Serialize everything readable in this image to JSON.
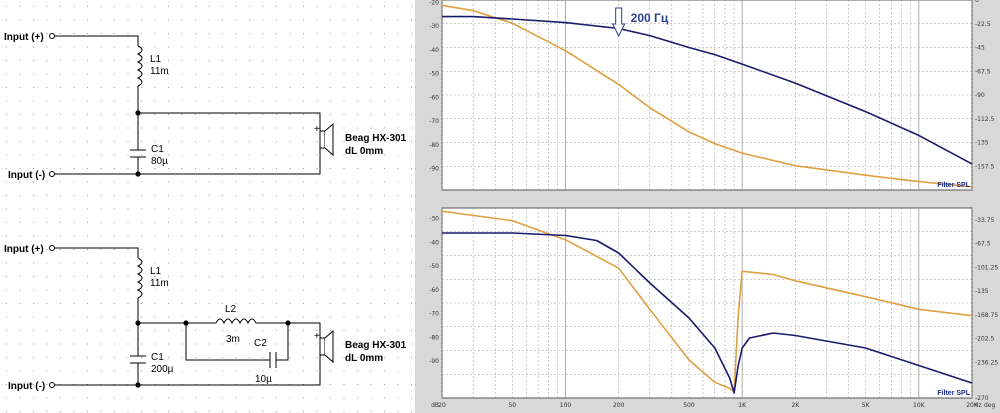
{
  "circuit_top": {
    "input_plus": "Input (+)",
    "input_minus": "Input (-)",
    "l1_name": "L1",
    "l1_value": "11m",
    "c1_name": "C1",
    "c1_value": "80µ",
    "speaker_name": "Beag  HX-301",
    "speaker_dl": "dL 0mm",
    "speaker_plus": "+"
  },
  "circuit_bottom": {
    "input_plus": "Input (+)",
    "input_minus": "Input (-)",
    "l1_name": "L1",
    "l1_value": "11m",
    "l2_name": "L2",
    "l2_value": "3m",
    "c1_name": "C1",
    "c1_value": "200µ",
    "c2_name": "C2",
    "c2_value": "10µ",
    "speaker_name": "Beag  HX-301",
    "speaker_dl": "dL 0mm",
    "speaker_plus": "+"
  },
  "colors": {
    "spl": "#1a1a6e",
    "phase": "#e0a040",
    "grid": "#999999",
    "plot_bg": "#ffffff",
    "frame": "#d8d8d8"
  },
  "chart_data": [
    {
      "type": "line",
      "legend": "Filter SPL",
      "annotation": "200 Гц",
      "left_axis_ticks": [
        "-20",
        "-30",
        "-40",
        "-50",
        "-60",
        "-70",
        "-80",
        "-90"
      ],
      "right_axis_ticks": [
        "0",
        "-22.5",
        "-45",
        "-67.5",
        "-90",
        "-112.5",
        "-135",
        "-157.5"
      ],
      "grid": true,
      "x_scale": "log",
      "series": [
        {
          "x": [
            20,
            30,
            50,
            100,
            200,
            300,
            500,
            700,
            1000,
            2000,
            5000,
            10000,
            20000
          ],
          "values": [
            -22,
            -22,
            -23,
            -24.5,
            -27,
            -30,
            -35,
            -38,
            -42,
            -50,
            -62,
            -72,
            -84
          ]
        },
        {
          "x": [
            20,
            30,
            50,
            100,
            200,
            300,
            500,
            700,
            1000,
            2000,
            5000,
            10000,
            20000
          ],
          "values": [
            -5,
            -10,
            -22,
            -48,
            -80,
            -102,
            -125,
            -136,
            -145,
            -157,
            -166,
            -172,
            -177
          ]
        }
      ]
    },
    {
      "type": "line",
      "legend": "Filter SPL",
      "left_axis_ticks": [
        "-30",
        "-40",
        "-50",
        "-60",
        "-70",
        "-80",
        "-90"
      ],
      "right_axis_ticks": [
        "-33.75",
        "-67.5",
        "-101.25",
        "-135",
        "-168.75",
        "-202.5",
        "-236.25"
      ],
      "x_ticks": [
        "20",
        "50",
        "100",
        "200",
        "500",
        "1K",
        "2K",
        "5K",
        "10K",
        "20K"
      ],
      "x_unit": "Hz",
      "left_unit": "dB",
      "right_unit": "deg",
      "right_bottom": "-270",
      "grid": true,
      "x_scale": "log",
      "series": [
        {
          "x": [
            20,
            30,
            50,
            100,
            150,
            200,
            300,
            500,
            700,
            850,
            900,
            950,
            1000,
            1100,
            1500,
            2000,
            5000,
            10000,
            20000
          ],
          "values": [
            -32,
            -32,
            -32,
            -33,
            -35,
            -40,
            -52,
            -66,
            -78,
            -90,
            -96,
            -85,
            -78,
            -74,
            -72,
            -73,
            -78,
            -85,
            -92
          ]
        },
        {
          "x": [
            20,
            50,
            100,
            200,
            300,
            500,
            700,
            850,
            900,
            950,
            1000,
            1500,
            2000,
            5000,
            10000,
            20000
          ],
          "values": [
            -5,
            -20,
            -50,
            -95,
            -160,
            -240,
            -275,
            -285,
            -290,
            -170,
            -100,
            -105,
            -115,
            -140,
            -160,
            -170
          ]
        }
      ]
    }
  ]
}
